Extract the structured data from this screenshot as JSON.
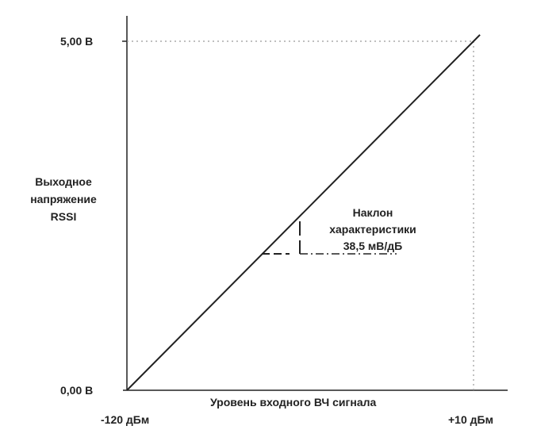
{
  "chart_data": {
    "type": "line",
    "xlabel": "Уровень входного ВЧ сигнала",
    "ylabel_lines": [
      "Выходное",
      "напряжение",
      "RSSI"
    ],
    "x_ticks": [
      "-120 дБм",
      "+10 дБм"
    ],
    "y_ticks": [
      "0,00 В",
      "5,00 В"
    ],
    "xlim": [
      -120,
      10
    ],
    "ylim": [
      0,
      5
    ],
    "series": [
      {
        "x": [
          -120,
          10
        ],
        "y": [
          0,
          5
        ]
      }
    ],
    "annotation": {
      "lines": [
        "Наклон",
        "характеристики",
        "38,5 мВ/дБ"
      ],
      "slope_mv_per_db": 38.5
    },
    "grid": false,
    "colors": {
      "line": "#222222",
      "guide": "#999999"
    }
  }
}
